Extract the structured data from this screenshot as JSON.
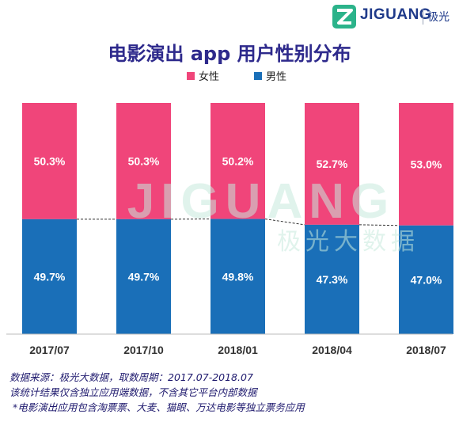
{
  "logo": {
    "brand": "JIGUANG",
    "brand_cn": "极光"
  },
  "watermark": {
    "text": "JIGUANG",
    "subtext": "极光大数据"
  },
  "chart_data": {
    "type": "bar",
    "stacked": true,
    "percent": true,
    "title": "电影演出 app 用户性别分布",
    "categories": [
      "2017/07",
      "2017/10",
      "2018/01",
      "2018/04",
      "2018/07"
    ],
    "series": [
      {
        "name": "女性",
        "color": "#f0457a",
        "values": [
          50.3,
          50.3,
          50.2,
          52.7,
          53.0
        ],
        "labels": [
          "50.3%",
          "50.3%",
          "50.2%",
          "52.7%",
          "53.0%"
        ]
      },
      {
        "name": "男性",
        "color": "#1a6fb8",
        "values": [
          49.7,
          49.7,
          49.8,
          47.3,
          47.0
        ],
        "labels": [
          "49.7%",
          "49.7%",
          "49.8%",
          "47.3%",
          "47.0%"
        ]
      }
    ],
    "ylim": [
      0,
      100
    ],
    "legend_position": "top",
    "grid": false
  },
  "footnotes": [
    "数据来源：极光大数据，取数周期：2017.07-2018.07",
    "该统计结果仅含独立应用端数据，不含其它平台内部数据",
    "*电影演出应用包含淘票票、大麦、猫眼、万达电影等独立票务应用"
  ]
}
